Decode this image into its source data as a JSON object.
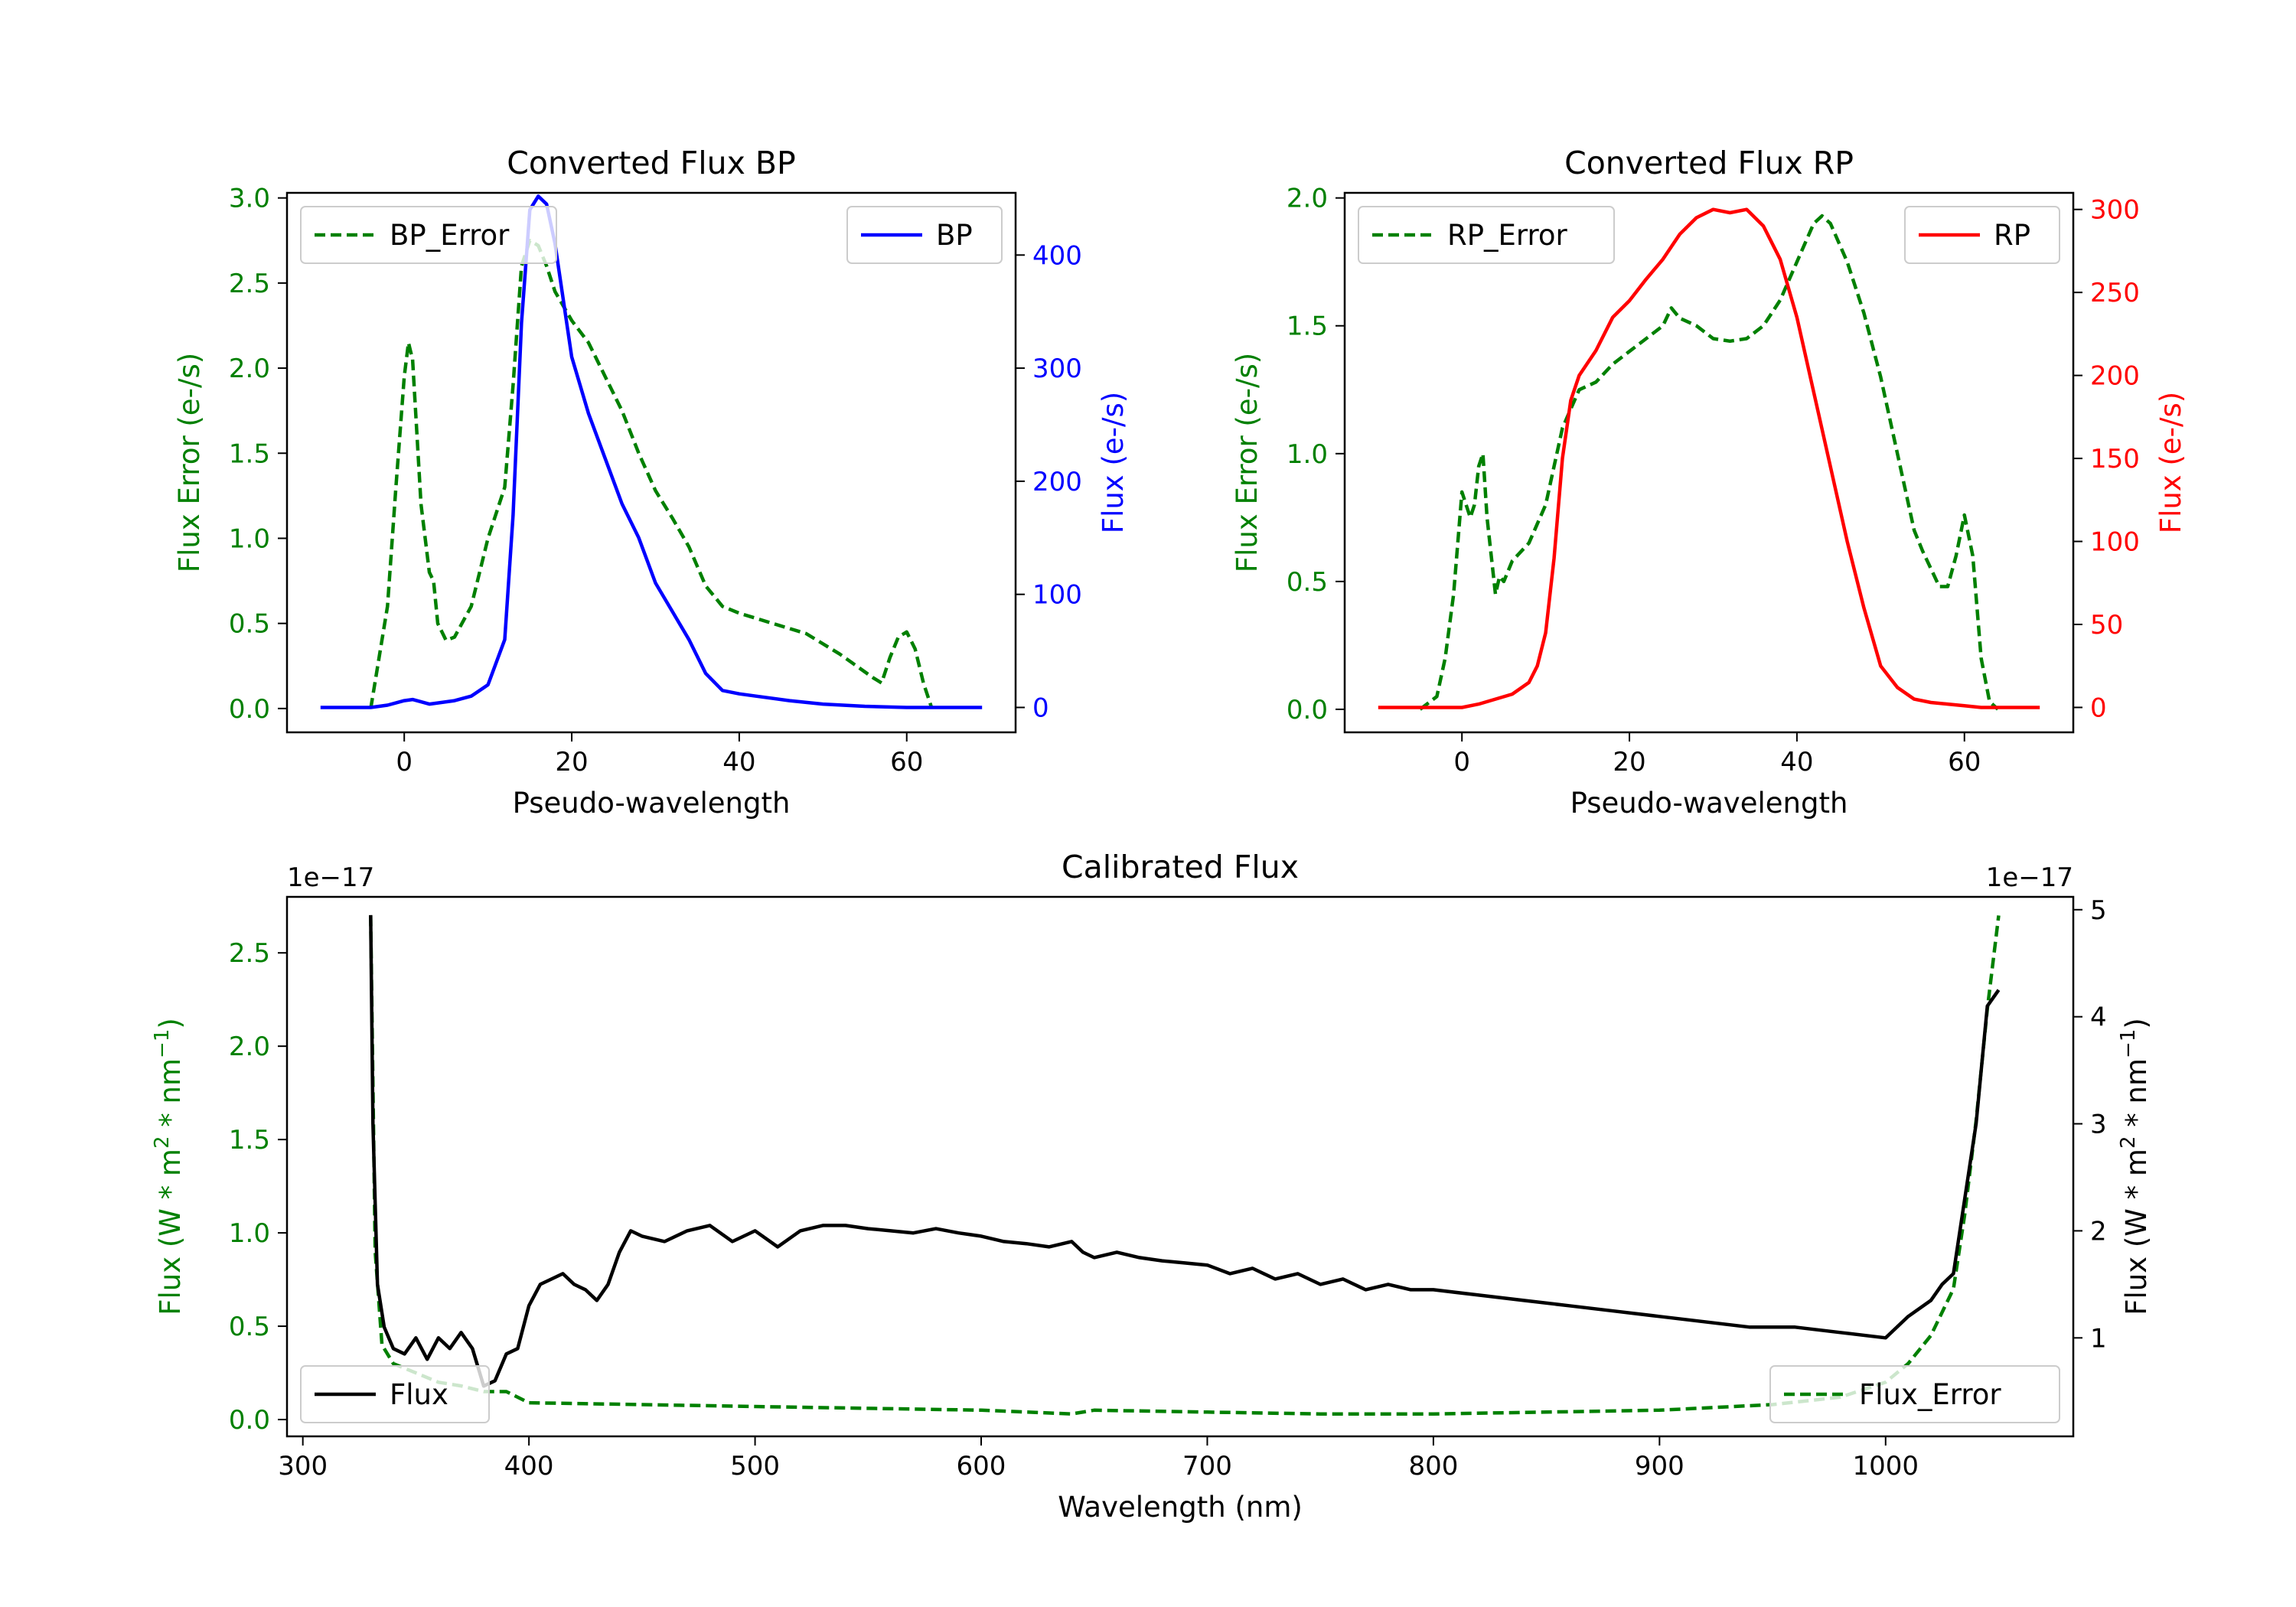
{
  "chart_data": [
    {
      "id": "bp",
      "type": "line",
      "title": "Converted Flux BP",
      "xlabel": "Pseudo-wavelength",
      "xlim": [
        -14,
        73
      ],
      "xticks": [
        0,
        20,
        40,
        60
      ],
      "left_axis": {
        "label": "Flux Error (e-/s)",
        "color": "#008000",
        "ylim": [
          -0.14,
          3.03
        ],
        "ticks": [
          0.0,
          0.5,
          1.0,
          1.5,
          2.0,
          2.5,
          3.0
        ],
        "tick_labels": [
          "0.0",
          "0.5",
          "1.0",
          "1.5",
          "2.0",
          "2.5",
          "3.0"
        ]
      },
      "right_axis": {
        "label": "Flux (e-/s)",
        "color": "#0000ff",
        "ylim": [
          -22,
          455
        ],
        "ticks": [
          0,
          100,
          200,
          300,
          400
        ],
        "tick_labels": [
          "0",
          "100",
          "200",
          "300",
          "400"
        ]
      },
      "series": [
        {
          "name": "BP_Error",
          "axis": "left",
          "style": "dashed",
          "color": "#008000",
          "x": [
            -4,
            -2,
            -1,
            0,
            0.5,
            1,
            2,
            3,
            3.5,
            4,
            5,
            6,
            8,
            10,
            12,
            13,
            14,
            15,
            16,
            17,
            18,
            20,
            22,
            24,
            26,
            28,
            30,
            32,
            34,
            36,
            38,
            40,
            44,
            48,
            52,
            56,
            57,
            58,
            59,
            60,
            61,
            62,
            63
          ],
          "y": [
            0.0,
            0.6,
            1.3,
            1.95,
            2.15,
            2.05,
            1.2,
            0.8,
            0.75,
            0.5,
            0.4,
            0.42,
            0.6,
            1.0,
            1.3,
            1.9,
            2.6,
            2.75,
            2.72,
            2.6,
            2.45,
            2.28,
            2.15,
            1.95,
            1.75,
            1.5,
            1.28,
            1.12,
            0.95,
            0.72,
            0.6,
            0.56,
            0.5,
            0.44,
            0.32,
            0.18,
            0.15,
            0.3,
            0.42,
            0.45,
            0.35,
            0.15,
            0.0
          ]
        },
        {
          "name": "BP",
          "axis": "right",
          "style": "solid",
          "color": "#0000ff",
          "x": [
            -10,
            -4,
            -2,
            0,
            1,
            2,
            3,
            4,
            6,
            8,
            10,
            12,
            13,
            14,
            15,
            16,
            17,
            18,
            20,
            22,
            24,
            26,
            28,
            30,
            32,
            34,
            36,
            38,
            40,
            42,
            46,
            50,
            55,
            60,
            65,
            69
          ],
          "y": [
            0,
            0,
            2,
            6,
            7,
            5,
            3,
            4,
            6,
            10,
            20,
            60,
            170,
            340,
            440,
            452,
            445,
            410,
            310,
            260,
            220,
            180,
            150,
            110,
            85,
            60,
            30,
            15,
            12,
            10,
            6,
            3,
            1,
            0,
            0,
            0
          ]
        }
      ],
      "legends": [
        {
          "entries": [
            "BP_Error"
          ],
          "position": "upper left"
        },
        {
          "entries": [
            "BP"
          ],
          "position": "upper right"
        }
      ]
    },
    {
      "id": "rp",
      "type": "line",
      "title": "Converted Flux RP",
      "xlabel": "Pseudo-wavelength",
      "xlim": [
        -14,
        73
      ],
      "xticks": [
        0,
        20,
        40,
        60
      ],
      "left_axis": {
        "label": "Flux Error (e-/s)",
        "color": "#008000",
        "ylim": [
          -0.09,
          2.02
        ],
        "ticks": [
          0.0,
          0.5,
          1.0,
          1.5,
          2.0
        ],
        "tick_labels": [
          "0.0",
          "0.5",
          "1.0",
          "1.5",
          "2.0"
        ]
      },
      "right_axis": {
        "label": "Flux (e-/s)",
        "color": "#ff0000",
        "ylim": [
          -15,
          310
        ],
        "ticks": [
          0,
          50,
          100,
          150,
          200,
          250,
          300
        ],
        "tick_labels": [
          "0",
          "50",
          "100",
          "150",
          "200",
          "250",
          "300"
        ]
      },
      "series": [
        {
          "name": "RP_Error",
          "axis": "left",
          "style": "dashed",
          "color": "#008000",
          "x": [
            -5,
            -3,
            -2,
            -1,
            0,
            1,
            1.5,
            2,
            2.5,
            3,
            4,
            4.5,
            5,
            6,
            8,
            10,
            12,
            14,
            16,
            18,
            20,
            22,
            24,
            25,
            26,
            28,
            30,
            32,
            34,
            36,
            38,
            40,
            42,
            43,
            44,
            46,
            48,
            50,
            52,
            54,
            55,
            56,
            57,
            58,
            59,
            60,
            61,
            62,
            63,
            64
          ],
          "y": [
            0.0,
            0.05,
            0.2,
            0.45,
            0.85,
            0.75,
            0.8,
            0.95,
            1.0,
            0.75,
            0.45,
            0.52,
            0.5,
            0.58,
            0.65,
            0.8,
            1.1,
            1.25,
            1.28,
            1.35,
            1.4,
            1.45,
            1.5,
            1.57,
            1.53,
            1.5,
            1.45,
            1.44,
            1.45,
            1.5,
            1.6,
            1.75,
            1.9,
            1.93,
            1.9,
            1.75,
            1.55,
            1.3,
            1.0,
            0.7,
            0.62,
            0.55,
            0.48,
            0.48,
            0.6,
            0.76,
            0.6,
            0.2,
            0.03,
            0.0
          ]
        },
        {
          "name": "RP",
          "axis": "right",
          "style": "solid",
          "color": "#ff0000",
          "x": [
            -10,
            -4,
            0,
            2,
            4,
            6,
            8,
            9,
            10,
            11,
            12,
            13,
            14,
            16,
            18,
            20,
            22,
            24,
            26,
            28,
            30,
            32,
            34,
            36,
            38,
            40,
            42,
            44,
            46,
            48,
            50,
            52,
            54,
            56,
            58,
            60,
            62,
            65,
            69
          ],
          "y": [
            0,
            0,
            0,
            2,
            5,
            8,
            15,
            25,
            45,
            90,
            150,
            185,
            200,
            215,
            235,
            245,
            258,
            270,
            285,
            295,
            300,
            298,
            300,
            290,
            270,
            235,
            190,
            145,
            100,
            60,
            25,
            12,
            5,
            3,
            2,
            1,
            0,
            0,
            0
          ]
        }
      ],
      "legends": [
        {
          "entries": [
            "RP_Error"
          ],
          "position": "upper left"
        },
        {
          "entries": [
            "RP"
          ],
          "position": "upper right"
        }
      ]
    },
    {
      "id": "cal",
      "type": "line",
      "title": "Calibrated Flux",
      "xlabel": "Wavelength (nm)",
      "xlim": [
        293,
        1083
      ],
      "xticks": [
        300,
        400,
        500,
        600,
        700,
        800,
        900,
        1000
      ],
      "left_axis": {
        "label": "Flux (W * m² * nm⁻¹)",
        "color": "#008000",
        "offset_text": "1e−17",
        "ylim": [
          -0.09,
          2.8
        ],
        "ticks": [
          0.0,
          0.5,
          1.0,
          1.5,
          2.0,
          2.5
        ],
        "tick_labels": [
          "0.0",
          "0.5",
          "1.0",
          "1.5",
          "2.0",
          "2.5"
        ]
      },
      "right_axis": {
        "label": "Flux (W * m² * nm⁻¹)",
        "color": "#000000",
        "offset_text": "1e−17",
        "ylim": [
          0.08,
          5.12
        ],
        "ticks": [
          1,
          2,
          3,
          4,
          5
        ],
        "tick_labels": [
          "1",
          "2",
          "3",
          "4",
          "5"
        ]
      },
      "series": [
        {
          "name": "Flux_Error",
          "axis": "left",
          "style": "dashed",
          "color": "#008000",
          "x": [
            330,
            332,
            335,
            340,
            350,
            360,
            370,
            380,
            390,
            400,
            450,
            500,
            550,
            600,
            640,
            650,
            700,
            750,
            800,
            850,
            900,
            950,
            980,
            1000,
            1010,
            1020,
            1030,
            1035,
            1040,
            1045,
            1050
          ],
          "y": [
            2.7,
            0.9,
            0.4,
            0.3,
            0.25,
            0.2,
            0.18,
            0.15,
            0.15,
            0.09,
            0.08,
            0.07,
            0.06,
            0.05,
            0.03,
            0.05,
            0.04,
            0.03,
            0.03,
            0.04,
            0.05,
            0.08,
            0.12,
            0.2,
            0.3,
            0.45,
            0.7,
            1.1,
            1.6,
            2.2,
            2.7
          ]
        },
        {
          "name": "Flux",
          "axis": "right",
          "style": "solid",
          "color": "#000000",
          "x": [
            330,
            331,
            333,
            336,
            340,
            345,
            350,
            355,
            360,
            365,
            370,
            375,
            380,
            385,
            390,
            395,
            400,
            405,
            410,
            415,
            420,
            425,
            430,
            435,
            440,
            445,
            450,
            460,
            470,
            480,
            490,
            500,
            510,
            520,
            530,
            540,
            550,
            560,
            570,
            580,
            590,
            600,
            610,
            620,
            630,
            640,
            645,
            650,
            660,
            670,
            680,
            690,
            700,
            710,
            720,
            730,
            740,
            750,
            760,
            770,
            780,
            790,
            800,
            820,
            840,
            860,
            880,
            900,
            920,
            940,
            960,
            980,
            1000,
            1010,
            1020,
            1025,
            1030,
            1040,
            1045,
            1050
          ],
          "y": [
            4.95,
            3.0,
            1.5,
            1.1,
            0.9,
            0.85,
            1.0,
            0.8,
            1.0,
            0.9,
            1.05,
            0.9,
            0.55,
            0.6,
            0.85,
            0.9,
            1.3,
            1.5,
            1.55,
            1.6,
            1.5,
            1.45,
            1.35,
            1.5,
            1.8,
            2.0,
            1.95,
            1.9,
            2.0,
            2.05,
            1.9,
            2.0,
            1.85,
            2.0,
            2.05,
            2.05,
            2.02,
            2.0,
            1.98,
            2.02,
            1.98,
            1.95,
            1.9,
            1.88,
            1.85,
            1.9,
            1.8,
            1.75,
            1.8,
            1.75,
            1.72,
            1.7,
            1.68,
            1.6,
            1.65,
            1.55,
            1.6,
            1.5,
            1.55,
            1.45,
            1.5,
            1.45,
            1.45,
            1.4,
            1.35,
            1.3,
            1.25,
            1.2,
            1.15,
            1.1,
            1.1,
            1.05,
            1.0,
            1.2,
            1.35,
            1.5,
            1.6,
            3.0,
            4.1,
            4.25
          ]
        }
      ],
      "legends": [
        {
          "entries": [
            "Flux"
          ],
          "position": "lower left"
        },
        {
          "entries": [
            "Flux_Error"
          ],
          "position": "lower right"
        }
      ]
    }
  ]
}
